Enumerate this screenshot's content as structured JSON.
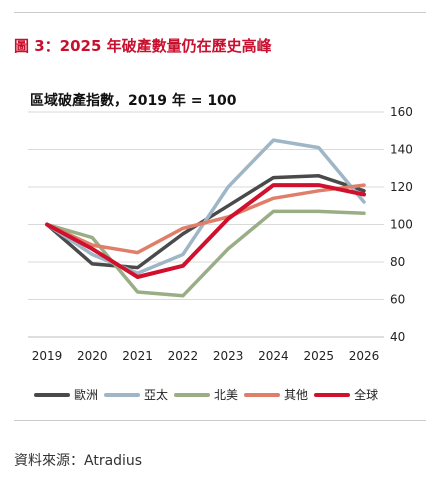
{
  "figure_title": "圖 3：2025 年破產數量仍在歷史高峰",
  "source": "資料來源：Atradius",
  "chart_data": {
    "type": "line",
    "title": "區域破產指數，2019 年 = 100",
    "x": [
      "2019",
      "2020",
      "2021",
      "2022",
      "2023",
      "2024",
      "2025",
      "2026"
    ],
    "ylim": [
      40,
      160
    ],
    "yticks": [
      40,
      60,
      80,
      100,
      120,
      140,
      160
    ],
    "y_axis_side": "right",
    "grid": true,
    "legend_position": "bottom",
    "series": [
      {
        "name": "歐洲",
        "color": "#4a4a4a",
        "values": [
          100,
          79,
          77,
          95,
          110,
          125,
          126,
          118
        ]
      },
      {
        "name": "亞太",
        "color": "#9fb6c6",
        "values": [
          100,
          84,
          74,
          84,
          120,
          145,
          141,
          112
        ]
      },
      {
        "name": "北美",
        "color": "#9aae86",
        "values": [
          100,
          93,
          64,
          62,
          87,
          107,
          107,
          106
        ]
      },
      {
        "name": "其他",
        "color": "#df7f6a",
        "values": [
          100,
          89,
          85,
          98,
          104,
          114,
          118,
          121
        ]
      },
      {
        "name": "全球",
        "color": "#d0102c",
        "values": [
          100,
          87,
          72,
          78,
          103,
          121,
          121,
          116
        ]
      }
    ]
  }
}
